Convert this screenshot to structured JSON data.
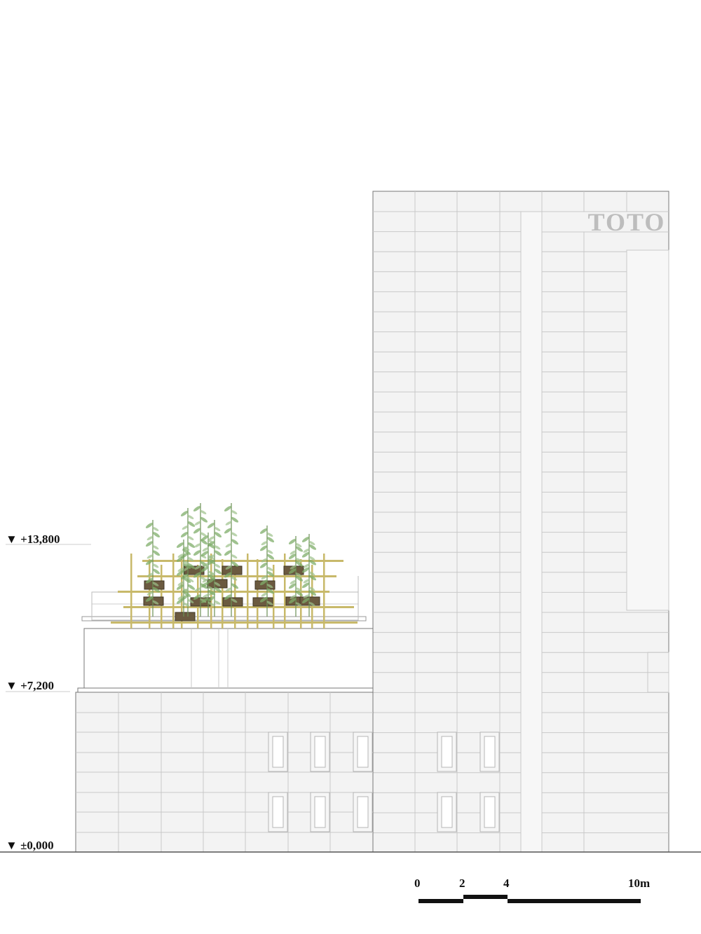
{
  "signage": {
    "text": "TOTO",
    "color": "#bdbdbd"
  },
  "levels": [
    {
      "label": "▼ +13,800"
    },
    {
      "label": "▼ +7,200"
    },
    {
      "label": "▼ ±0,000"
    }
  ],
  "scale_bar": {
    "labels": [
      "0",
      "2",
      "4",
      "10m"
    ]
  },
  "colors": {
    "facade_fill": "#f3f3f3",
    "grid_line": "#c8c8c8",
    "outline": "#777777",
    "ground": "#555555",
    "bamboo_frame": "#c8b96a",
    "planter": "#6b5a40",
    "foliage": "#7fae6a"
  }
}
